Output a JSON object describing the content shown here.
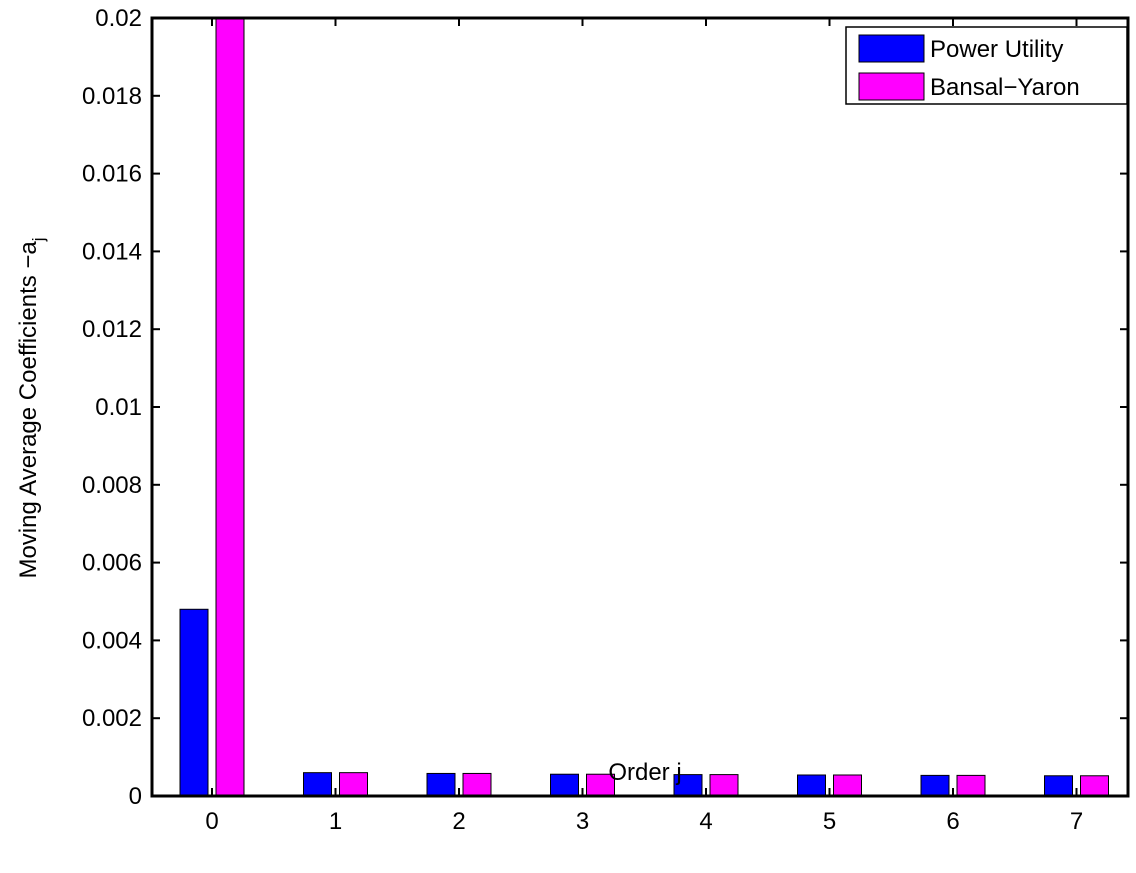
{
  "chart_data": {
    "type": "bar",
    "categories": [
      "0",
      "1",
      "2",
      "3",
      "4",
      "5",
      "6",
      "7"
    ],
    "series": [
      {
        "name": "Power Utility",
        "color": "#0000ff",
        "values": [
          0.0048,
          0.0006,
          0.00058,
          0.00056,
          0.00055,
          0.00054,
          0.00053,
          0.00052
        ]
      },
      {
        "name": "Bansal−Yaron",
        "color": "#ff00ff",
        "values": [
          0.02,
          0.0006,
          0.00058,
          0.00056,
          0.00055,
          0.00054,
          0.00053,
          0.00052
        ]
      }
    ],
    "xlabel": "Order j",
    "ylabel": "Moving Average Coefficients −a",
    "ylabel_subscript": "j",
    "ylim": [
      0,
      0.02
    ],
    "yticks": [
      "0",
      "0.002",
      "0.004",
      "0.006",
      "0.008",
      "0.01",
      "0.012",
      "0.014",
      "0.016",
      "0.018",
      "0.02"
    ],
    "grid": false,
    "legend_position": "top-right"
  }
}
